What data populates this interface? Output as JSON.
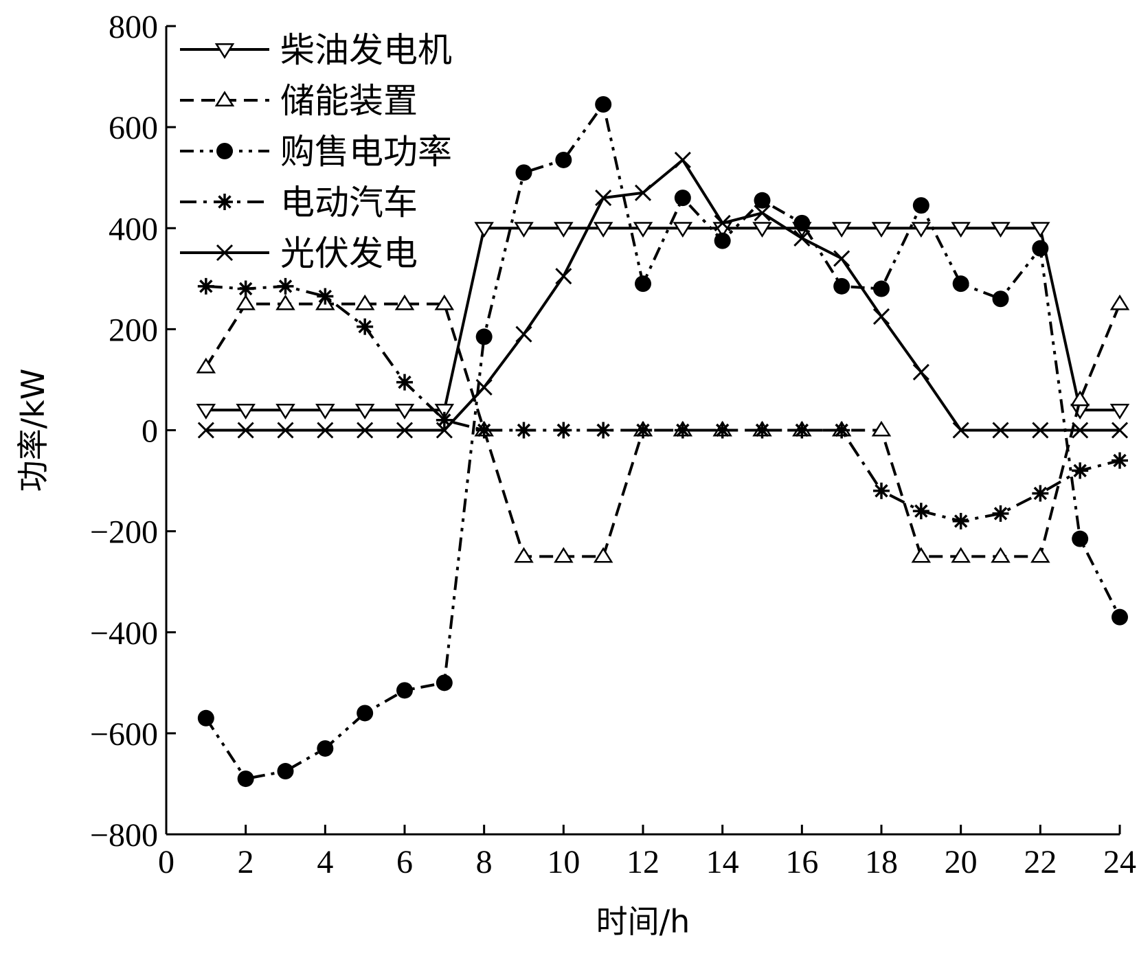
{
  "chart_data": {
    "type": "line",
    "xlabel": "时间/h",
    "ylabel": "功率/kW",
    "xlim": [
      0,
      24
    ],
    "ylim": [
      -800,
      800
    ],
    "xticks": [
      0,
      2,
      4,
      6,
      8,
      10,
      12,
      14,
      16,
      18,
      20,
      22,
      24
    ],
    "yticks": [
      -800,
      -600,
      -400,
      -200,
      0,
      200,
      400,
      600,
      800
    ],
    "x": [
      1,
      2,
      3,
      4,
      5,
      6,
      7,
      8,
      9,
      10,
      11,
      12,
      13,
      14,
      15,
      16,
      17,
      18,
      19,
      20,
      21,
      22,
      23,
      24
    ],
    "legend_position": "top-left",
    "grid": false,
    "series": [
      {
        "name": "柴油发电机",
        "marker": "triangle-down",
        "line_style": "solid",
        "values": [
          40,
          40,
          40,
          40,
          40,
          40,
          40,
          400,
          400,
          400,
          400,
          400,
          400,
          400,
          400,
          400,
          400,
          400,
          400,
          400,
          400,
          400,
          40,
          40
        ]
      },
      {
        "name": "储能装置",
        "marker": "triangle-up",
        "line_style": "dashed",
        "values": [
          125,
          250,
          250,
          250,
          250,
          250,
          250,
          0,
          -250,
          -250,
          -250,
          0,
          0,
          0,
          0,
          0,
          0,
          0,
          -250,
          -250,
          -250,
          -250,
          60,
          250
        ]
      },
      {
        "name": "购售电功率",
        "marker": "circle",
        "line_style": "dash-dot-dot",
        "values": [
          -570,
          -690,
          -675,
          -630,
          -560,
          -515,
          -500,
          185,
          510,
          535,
          645,
          290,
          460,
          375,
          455,
          410,
          285,
          280,
          445,
          290,
          260,
          360,
          -215,
          -370
        ]
      },
      {
        "name": "电动汽车",
        "marker": "asterisk",
        "line_style": "dash-dot",
        "values": [
          285,
          280,
          285,
          265,
          205,
          95,
          20,
          0,
          0,
          0,
          0,
          0,
          0,
          0,
          0,
          0,
          0,
          -120,
          -160,
          -180,
          -165,
          -125,
          -80,
          -60
        ]
      },
      {
        "name": "光伏发电",
        "marker": "x",
        "line_style": "solid",
        "values": [
          0,
          0,
          0,
          0,
          0,
          0,
          0,
          85,
          190,
          305,
          460,
          470,
          535,
          410,
          430,
          380,
          340,
          225,
          115,
          0,
          0,
          0,
          0,
          0
        ]
      }
    ]
  }
}
